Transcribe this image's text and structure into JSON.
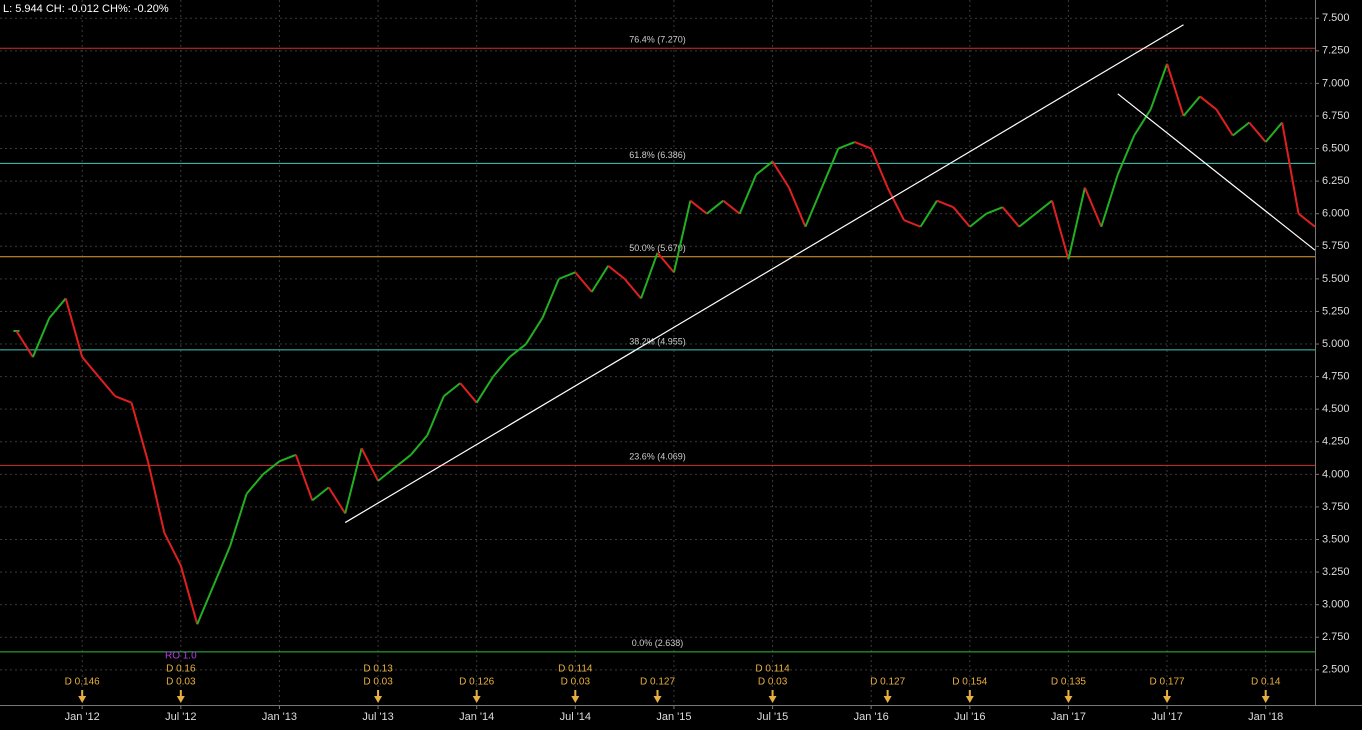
{
  "header": {
    "text": "L: 5.944 CH: -0.012 CH%: -0.20%"
  },
  "chart_data": {
    "type": "price",
    "x": [
      "2011-09",
      "2011-10",
      "2011-11",
      "2011-12",
      "2012-01",
      "2012-02",
      "2012-03",
      "2012-04",
      "2012-05",
      "2012-06",
      "2012-07",
      "2012-08",
      "2012-09",
      "2012-10",
      "2012-11",
      "2012-12",
      "2013-01",
      "2013-02",
      "2013-03",
      "2013-04",
      "2013-05",
      "2013-06",
      "2013-07",
      "2013-08",
      "2013-09",
      "2013-10",
      "2013-11",
      "2013-12",
      "2014-01",
      "2014-02",
      "2014-03",
      "2014-04",
      "2014-05",
      "2014-06",
      "2014-07",
      "2014-08",
      "2014-09",
      "2014-10",
      "2014-11",
      "2014-12",
      "2015-01",
      "2015-02",
      "2015-03",
      "2015-04",
      "2015-05",
      "2015-06",
      "2015-07",
      "2015-08",
      "2015-09",
      "2015-10",
      "2015-11",
      "2015-12",
      "2016-01",
      "2016-02",
      "2016-03",
      "2016-04",
      "2016-05",
      "2016-06",
      "2016-07",
      "2016-08",
      "2016-09",
      "2016-10",
      "2016-11",
      "2016-12",
      "2017-01",
      "2017-02",
      "2017-03",
      "2017-04",
      "2017-05",
      "2017-06",
      "2017-07",
      "2017-08",
      "2017-09",
      "2017-10",
      "2017-11",
      "2017-12",
      "2018-01",
      "2018-02",
      "2018-03",
      "2018-04"
    ],
    "values": [
      5.1,
      4.9,
      5.2,
      5.35,
      4.9,
      4.75,
      4.6,
      4.55,
      4.1,
      3.55,
      3.3,
      2.85,
      3.15,
      3.45,
      3.85,
      4.0,
      4.1,
      4.15,
      3.8,
      3.9,
      3.7,
      4.2,
      3.95,
      4.05,
      4.15,
      4.3,
      4.6,
      4.7,
      4.55,
      4.75,
      4.9,
      5.0,
      5.2,
      5.5,
      5.55,
      5.4,
      5.6,
      5.5,
      5.35,
      5.7,
      5.55,
      6.1,
      6.0,
      6.1,
      6.0,
      6.3,
      6.4,
      6.2,
      5.9,
      6.2,
      6.5,
      6.55,
      6.5,
      6.2,
      5.95,
      5.9,
      6.1,
      6.05,
      5.9,
      6.0,
      6.05,
      5.9,
      6.0,
      6.1,
      5.65,
      6.2,
      5.9,
      6.3,
      6.6,
      6.8,
      7.15,
      6.75,
      6.9,
      6.8,
      6.6,
      6.7,
      6.55,
      6.7,
      6.0,
      5.9
    ],
    "up_color": "#22b022",
    "down_color": "#e02020",
    "xlim": [
      "2011-08",
      "2018-04"
    ],
    "xticks": [
      {
        "value": "2012-01",
        "label": "Jan '12"
      },
      {
        "value": "2012-07",
        "label": "Jul '12"
      },
      {
        "value": "2013-01",
        "label": "Jan '13"
      },
      {
        "value": "2013-07",
        "label": "Jul '13"
      },
      {
        "value": "2014-01",
        "label": "Jan '14"
      },
      {
        "value": "2014-07",
        "label": "Jul '14"
      },
      {
        "value": "2015-01",
        "label": "Jan '15"
      },
      {
        "value": "2015-07",
        "label": "Jul '15"
      },
      {
        "value": "2016-01",
        "label": "Jan '16"
      },
      {
        "value": "2016-07",
        "label": "Jul '16"
      },
      {
        "value": "2017-01",
        "label": "Jan '17"
      },
      {
        "value": "2017-07",
        "label": "Jul '17"
      },
      {
        "value": "2018-01",
        "label": "Jan '18"
      }
    ],
    "ylim": [
      2.23,
      7.64
    ],
    "yticks": [
      {
        "value": 2.5,
        "label": "2.500"
      },
      {
        "value": 2.75,
        "label": "2.750"
      },
      {
        "value": 3,
        "label": "3.000"
      },
      {
        "value": 3.25,
        "label": "3.250"
      },
      {
        "value": 3.5,
        "label": "3.500"
      },
      {
        "value": 3.75,
        "label": "3.750"
      },
      {
        "value": 4,
        "label": "4.000"
      },
      {
        "value": 4.25,
        "label": "4.250"
      },
      {
        "value": 4.5,
        "label": "4.500"
      },
      {
        "value": 4.75,
        "label": "4.750"
      },
      {
        "value": 5,
        "label": "5.000"
      },
      {
        "value": 5.25,
        "label": "5.250"
      },
      {
        "value": 5.5,
        "label": "5.500"
      },
      {
        "value": 5.75,
        "label": "5.750"
      },
      {
        "value": 6,
        "label": "6.000"
      },
      {
        "value": 6.25,
        "label": "6.250"
      },
      {
        "value": 6.5,
        "label": "6.500"
      },
      {
        "value": 6.75,
        "label": "6.750"
      },
      {
        "value": 7,
        "label": "7.000"
      },
      {
        "value": 7.25,
        "label": "7.250"
      },
      {
        "value": 7.5,
        "label": "7.500"
      }
    ],
    "grid": true,
    "fib_levels": [
      {
        "value": 2.638,
        "label": "0.0% (2.638)",
        "color": "#2ec040"
      },
      {
        "value": 4.069,
        "label": "23.6% (4.069)",
        "color": "#d03030"
      },
      {
        "value": 4.955,
        "label": "38.2% (4.955)",
        "color": "#40c8b8"
      },
      {
        "value": 5.67,
        "label": "50.0% (5.670)",
        "color": "#e0a030"
      },
      {
        "value": 6.386,
        "label": "61.8% (6.386)",
        "color": "#40c8b8"
      },
      {
        "value": 7.27,
        "label": "76.4% (7.270)",
        "color": "#d03030"
      }
    ],
    "trendlines": [
      {
        "x": [
          "2013-05",
          "2017-08"
        ],
        "y": [
          3.63,
          7.45
        ]
      },
      {
        "x": [
          "2017-04",
          "2018-04"
        ],
        "y": [
          6.92,
          5.72
        ]
      }
    ],
    "event_color": "#e8b040",
    "events": [
      {
        "x": "2012-01",
        "labels": [
          "D 0.146"
        ]
      },
      {
        "x": "2012-07",
        "labels": [
          "D 0.16",
          "D 0.03"
        ]
      },
      {
        "x": "2013-07",
        "labels": [
          "D 0.13",
          "D 0.03"
        ]
      },
      {
        "x": "2014-01",
        "labels": [
          "D 0.126"
        ]
      },
      {
        "x": "2014-07",
        "labels": [
          "D 0.114",
          "D 0.03"
        ]
      },
      {
        "x": "2014-12",
        "labels": [
          "D 0.127"
        ]
      },
      {
        "x": "2015-07",
        "labels": [
          "D 0.114",
          "D 0.03"
        ]
      },
      {
        "x": "2016-02",
        "labels": [
          "D 0.127"
        ]
      },
      {
        "x": "2016-07",
        "labels": [
          "D 0.154"
        ]
      },
      {
        "x": "2017-01",
        "labels": [
          "D 0.135"
        ]
      },
      {
        "x": "2017-07",
        "labels": [
          "D 0.177"
        ]
      },
      {
        "x": "2018-01",
        "labels": [
          "D 0.14"
        ]
      }
    ],
    "ro_event": {
      "x": "2012-07",
      "label": "RO 1.0",
      "color": "#b040e0"
    }
  }
}
